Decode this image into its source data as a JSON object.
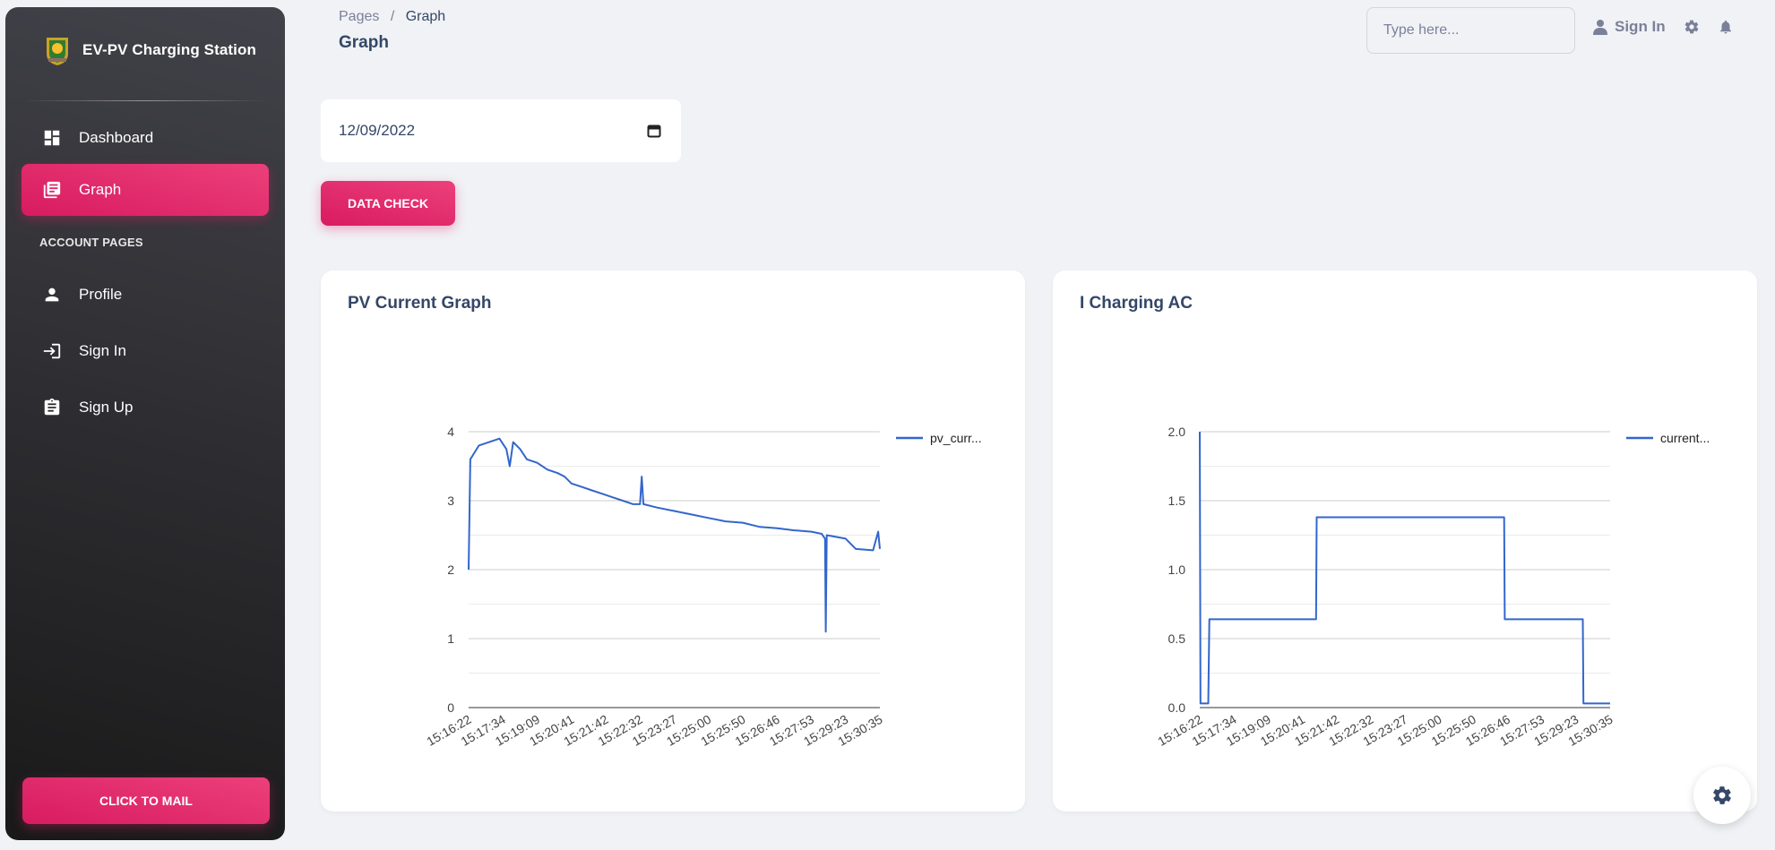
{
  "sidebar": {
    "brand_title": "EV-PV Charging Station",
    "items": [
      {
        "label": "Dashboard",
        "icon": "dashboard-icon",
        "active": false
      },
      {
        "label": "Graph",
        "icon": "library-books-icon",
        "active": true
      }
    ],
    "section_label": "ACCOUNT PAGES",
    "account_items": [
      {
        "label": "Profile",
        "icon": "person-icon"
      },
      {
        "label": "Sign In",
        "icon": "login-icon"
      },
      {
        "label": "Sign Up",
        "icon": "assignment-icon"
      }
    ],
    "mail_button": "CLICK TO MAIL"
  },
  "header": {
    "breadcrumb_root": "Pages",
    "breadcrumb_sep": "/",
    "breadcrumb_current": "Graph",
    "title": "Graph",
    "search_placeholder": "Type here...",
    "signin_label": "Sign In"
  },
  "filters": {
    "date_value": "12/09/2022",
    "check_button": "DATA CHECK"
  },
  "colors": {
    "accent": "#e91e63",
    "line": "#3366cc",
    "sidebar": "#2b2b30"
  },
  "chart_data": [
    {
      "type": "line",
      "title": "PV Current Graph",
      "x_ticks": [
        "15:16:22",
        "15:17:34",
        "15:19:09",
        "15:20:41",
        "15:21:42",
        "15:22:32",
        "15:23:27",
        "15:25:00",
        "15:25:50",
        "15:26:46",
        "15:27:53",
        "15:29:23",
        "15:30:35"
      ],
      "y_ticks": [
        "0",
        "1",
        "2",
        "3",
        "4"
      ],
      "ylim": [
        0,
        4
      ],
      "series": [
        {
          "name": "pv_curr...",
          "color": "#3366cc",
          "points": [
            [
              0,
              2.0
            ],
            [
              0.05,
              3.6
            ],
            [
              0.3,
              3.8
            ],
            [
              0.6,
              3.85
            ],
            [
              0.9,
              3.9
            ],
            [
              1.1,
              3.75
            ],
            [
              1.2,
              3.5
            ],
            [
              1.3,
              3.85
            ],
            [
              1.5,
              3.75
            ],
            [
              1.7,
              3.6
            ],
            [
              2.0,
              3.55
            ],
            [
              2.3,
              3.45
            ],
            [
              2.6,
              3.4
            ],
            [
              2.8,
              3.35
            ],
            [
              3.0,
              3.25
            ],
            [
              3.3,
              3.2
            ],
            [
              3.6,
              3.15
            ],
            [
              3.9,
              3.1
            ],
            [
              4.2,
              3.05
            ],
            [
              4.5,
              3.0
            ],
            [
              4.8,
              2.95
            ],
            [
              5.0,
              2.95
            ],
            [
              5.05,
              3.35
            ],
            [
              5.1,
              2.95
            ],
            [
              5.5,
              2.9
            ],
            [
              6.0,
              2.85
            ],
            [
              6.5,
              2.8
            ],
            [
              7.0,
              2.75
            ],
            [
              7.5,
              2.7
            ],
            [
              8.0,
              2.68
            ],
            [
              8.5,
              2.62
            ],
            [
              9.0,
              2.6
            ],
            [
              9.5,
              2.57
            ],
            [
              10.0,
              2.55
            ],
            [
              10.3,
              2.52
            ],
            [
              10.4,
              2.45
            ],
            [
              10.42,
              1.1
            ],
            [
              10.45,
              2.5
            ],
            [
              11.0,
              2.45
            ],
            [
              11.3,
              2.3
            ],
            [
              11.8,
              2.28
            ],
            [
              11.95,
              2.55
            ],
            [
              12.0,
              2.3
            ]
          ]
        }
      ]
    },
    {
      "type": "line",
      "title": "I Charging AC",
      "x_ticks": [
        "15:16:22",
        "15:17:34",
        "15:19:09",
        "15:20:41",
        "15:21:42",
        "15:22:32",
        "15:23:27",
        "15:25:00",
        "15:25:50",
        "15:26:46",
        "15:27:53",
        "15:29:23",
        "15:30:35"
      ],
      "y_ticks": [
        "0.0",
        "0.5",
        "1.0",
        "1.5",
        "2.0"
      ],
      "ylim": [
        0,
        2
      ],
      "series": [
        {
          "name": "current...",
          "color": "#3366cc",
          "points": [
            [
              0,
              2.0
            ],
            [
              0.02,
              0.03
            ],
            [
              0.25,
              0.03
            ],
            [
              0.28,
              0.64
            ],
            [
              3.4,
              0.64
            ],
            [
              3.42,
              1.38
            ],
            [
              8.9,
              1.38
            ],
            [
              8.92,
              0.64
            ],
            [
              11.2,
              0.64
            ],
            [
              11.22,
              0.03
            ],
            [
              12.0,
              0.03
            ]
          ]
        }
      ]
    }
  ]
}
